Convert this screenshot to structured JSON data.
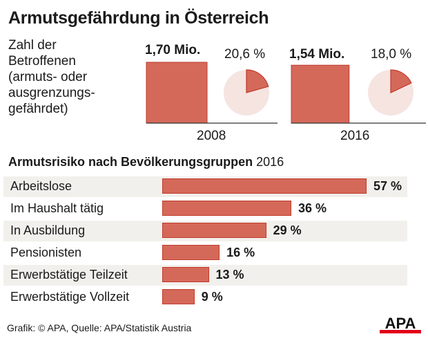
{
  "title": "Armutsgefährdung in Österreich",
  "description": [
    "Zahl der",
    "Betroffenen",
    "(armuts- oder",
    "ausgrenzungs-",
    "gefährdet)"
  ],
  "colors": {
    "bar": "#d4695a",
    "bar_border": "#c23a2a",
    "pie_bg": "#f5e4e0",
    "stripe": "#f1f0ec",
    "logo_red": "#e2001a"
  },
  "chart_data": [
    {
      "type": "bar",
      "title": "Armutsgefährdung in Österreich",
      "categories": [
        "2008",
        "2016"
      ],
      "values_mio": [
        1.7,
        1.54
      ],
      "value_labels": [
        "1,70 Mio.",
        "1,54 Mio."
      ],
      "share_percent": [
        20.6,
        18.0
      ],
      "share_labels": [
        "20,6 %",
        "18,0 %"
      ]
    },
    {
      "type": "bar",
      "orientation": "horizontal",
      "title_bold": "Armutsrisiko nach Bevölkerungsgruppen",
      "title_year": "2016",
      "categories": [
        "Arbeitslose",
        "Im Haushalt tätig",
        "In Ausbildung",
        "Pensionisten",
        "Erwerbstätige Teilzeit",
        "Erwerbstätige Vollzeit"
      ],
      "values": [
        57,
        36,
        29,
        16,
        13,
        9
      ],
      "value_labels": [
        "57 %",
        "36 %",
        "29 %",
        "16 %",
        "13 %",
        "9 %"
      ]
    }
  ],
  "footer": "Grafik: © APA, Quelle: APA/Statistik Austria",
  "logo": "APA"
}
